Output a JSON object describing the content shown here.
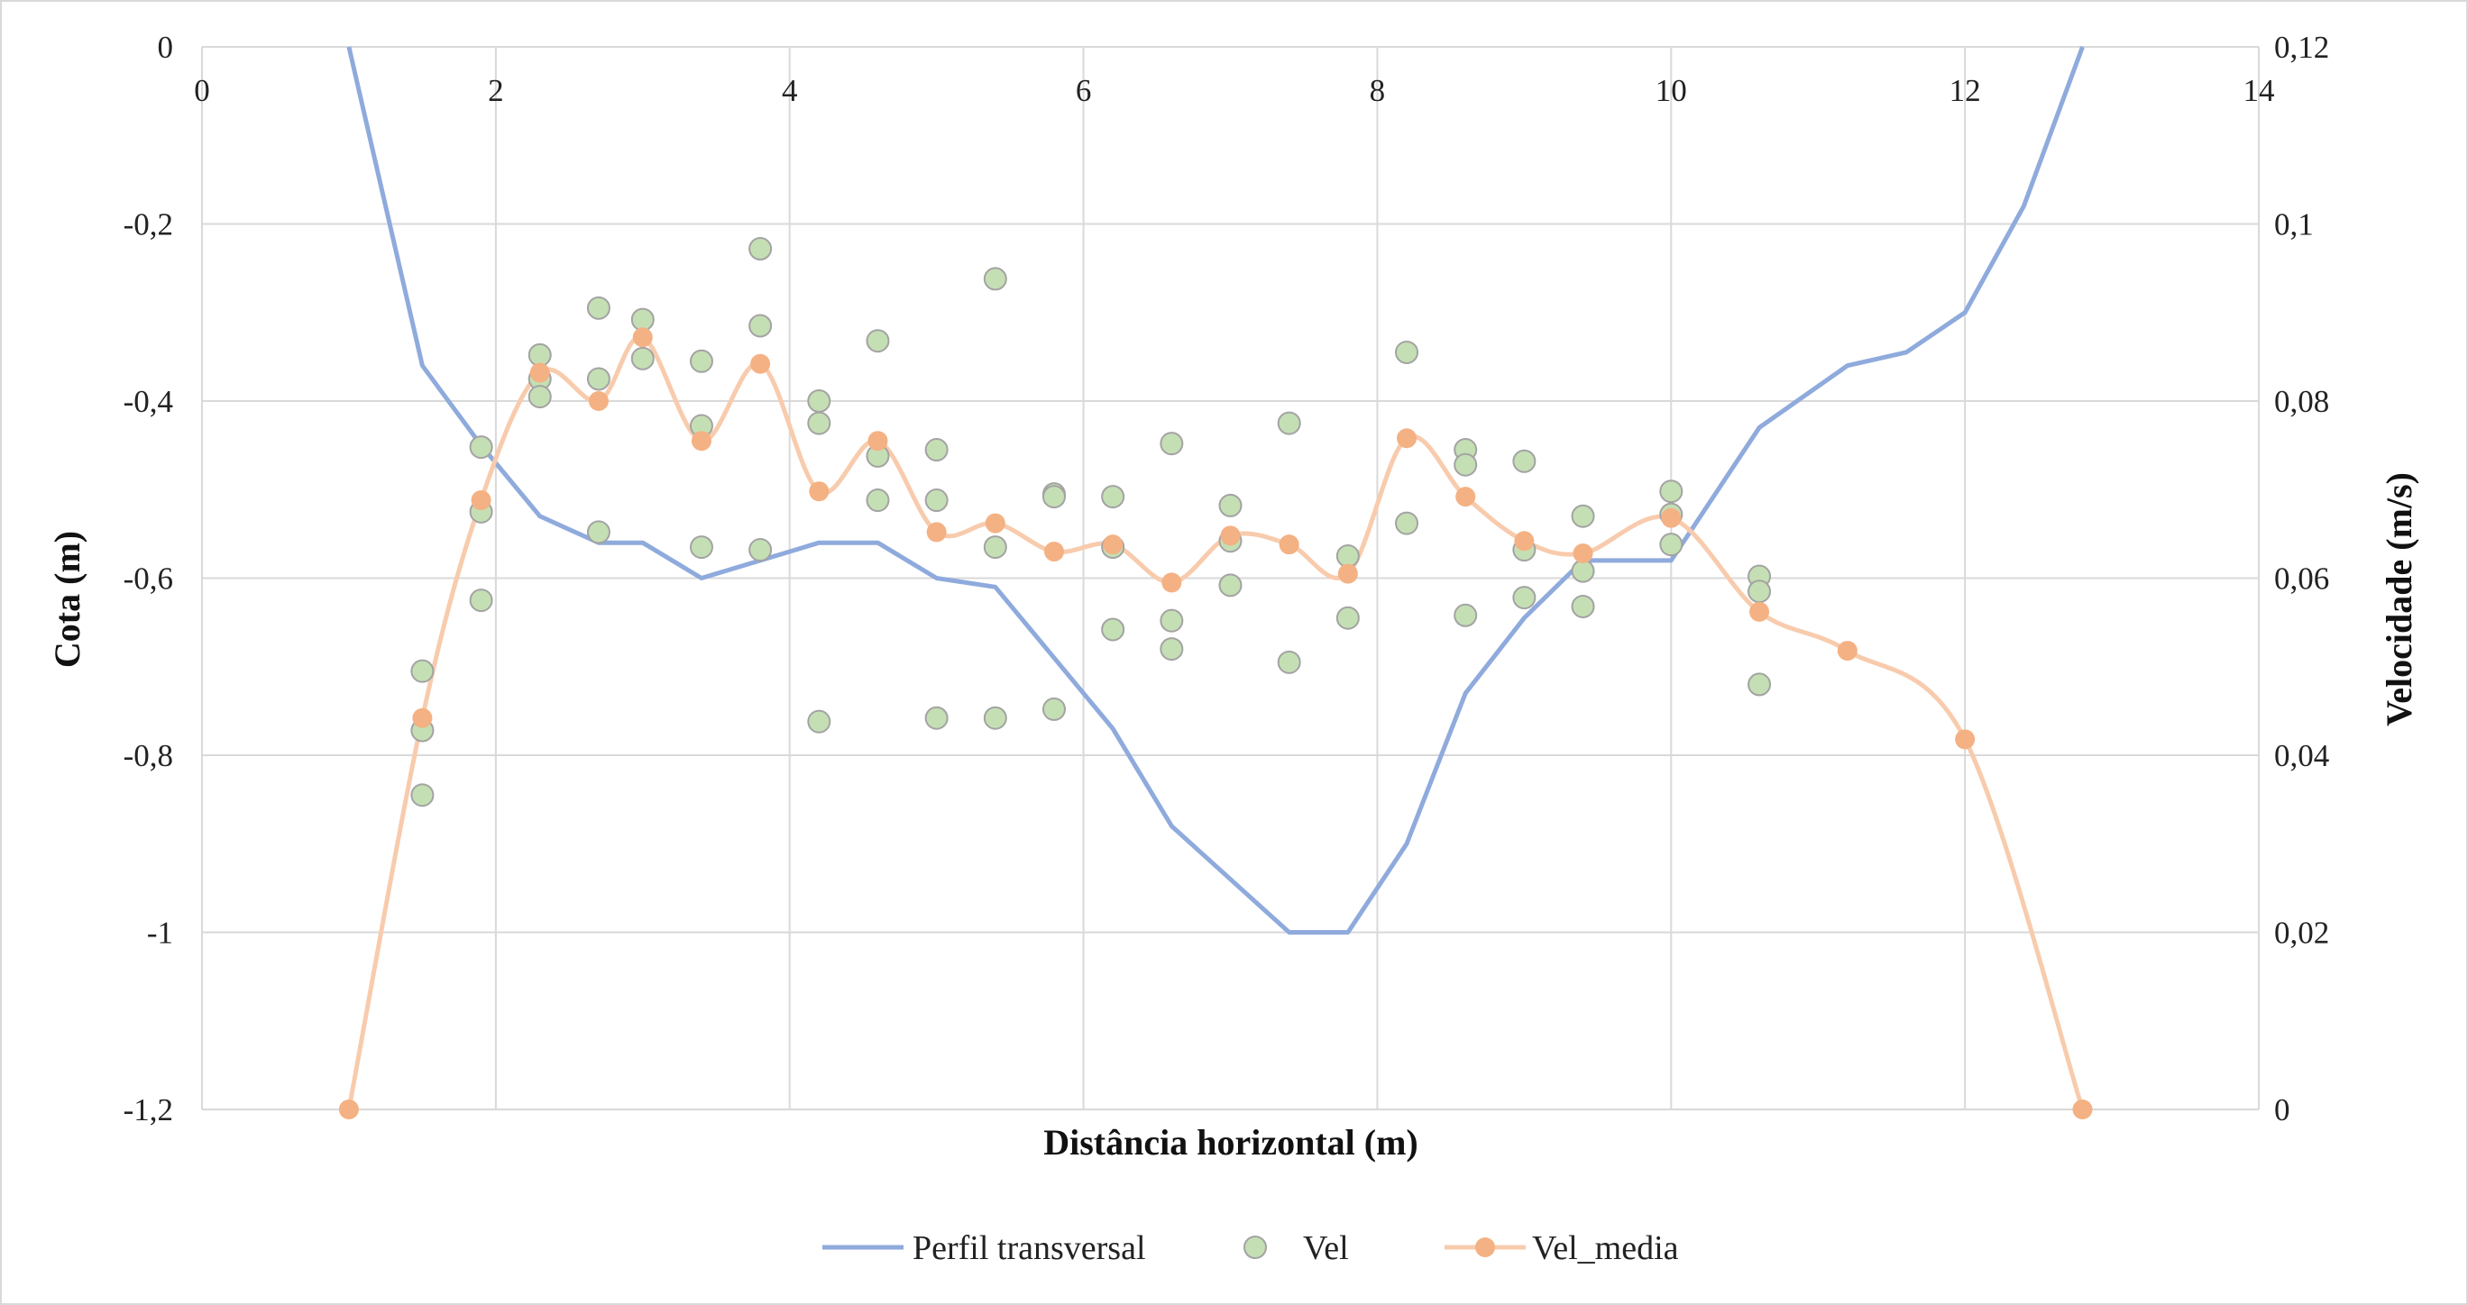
{
  "chart_data": {
    "type": "line",
    "title": "",
    "xlabel": "Distância horizontal (m)",
    "ylabel_left": "Cota (m)",
    "ylabel_right": "Velocidade (m/s)",
    "xlim": [
      0,
      14
    ],
    "ylim_left": [
      -1.2,
      0
    ],
    "ylim_right": [
      0,
      0.12
    ],
    "grid": true,
    "legend_position": "bottom",
    "x_ticks": [
      "0",
      "2",
      "4",
      "6",
      "8",
      "10",
      "12",
      "14"
    ],
    "y_left_ticks": [
      "0",
      "-0,2",
      "-0,4",
      "-0,6",
      "-0,8",
      "-1",
      "-1,2"
    ],
    "y_right_ticks": [
      "0,12",
      "0,1",
      "0,08",
      "0,06",
      "0,04",
      "0,02",
      "0"
    ],
    "series": [
      {
        "name": "Perfil transversal",
        "axis": "left",
        "style": "line",
        "color": "#8faadc",
        "points": [
          [
            1.0,
            0.0
          ],
          [
            1.5,
            -0.36
          ],
          [
            1.9,
            -0.45
          ],
          [
            2.3,
            -0.53
          ],
          [
            2.7,
            -0.56
          ],
          [
            3.0,
            -0.56
          ],
          [
            3.4,
            -0.6
          ],
          [
            3.8,
            -0.58
          ],
          [
            4.2,
            -0.56
          ],
          [
            4.6,
            -0.56
          ],
          [
            5.0,
            -0.6
          ],
          [
            5.4,
            -0.61
          ],
          [
            5.8,
            -0.69
          ],
          [
            6.2,
            -0.77
          ],
          [
            6.6,
            -0.88
          ],
          [
            7.0,
            -0.94
          ],
          [
            7.4,
            -1.0
          ],
          [
            7.8,
            -1.0
          ],
          [
            8.2,
            -0.9
          ],
          [
            8.6,
            -0.73
          ],
          [
            9.0,
            -0.645
          ],
          [
            9.4,
            -0.58
          ],
          [
            10.0,
            -0.58
          ],
          [
            10.6,
            -0.43
          ],
          [
            11.2,
            -0.36
          ],
          [
            11.6,
            -0.345
          ],
          [
            12.0,
            -0.3
          ],
          [
            12.4,
            -0.18
          ],
          [
            12.8,
            0.0
          ]
        ]
      },
      {
        "name": "Vel",
        "axis": "right",
        "style": "scatter",
        "color": "#c5dfb4",
        "points": [
          [
            1.5,
            0.0495
          ],
          [
            1.5,
            0.0428
          ],
          [
            1.5,
            0.0355
          ],
          [
            1.9,
            0.0748
          ],
          [
            1.9,
            0.0675
          ],
          [
            1.9,
            0.0575
          ],
          [
            2.3,
            0.0852
          ],
          [
            2.3,
            0.0825
          ],
          [
            2.3,
            0.0805
          ],
          [
            2.7,
            0.0905
          ],
          [
            2.7,
            0.0825
          ],
          [
            2.7,
            0.0652
          ],
          [
            3.0,
            0.0892
          ],
          [
            3.0,
            0.0848
          ],
          [
            3.4,
            0.0845
          ],
          [
            3.4,
            0.0772
          ],
          [
            3.4,
            0.0635
          ],
          [
            3.8,
            0.0972
          ],
          [
            3.8,
            0.0885
          ],
          [
            3.8,
            0.0632
          ],
          [
            4.2,
            0.08
          ],
          [
            4.2,
            0.0775
          ],
          [
            4.2,
            0.0438
          ],
          [
            4.6,
            0.0868
          ],
          [
            4.6,
            0.0738
          ],
          [
            4.6,
            0.0688
          ],
          [
            5.0,
            0.0745
          ],
          [
            5.0,
            0.0688
          ],
          [
            5.0,
            0.0442
          ],
          [
            5.4,
            0.0938
          ],
          [
            5.4,
            0.0635
          ],
          [
            5.4,
            0.0442
          ],
          [
            5.8,
            0.0695
          ],
          [
            5.8,
            0.0692
          ],
          [
            5.8,
            0.0452
          ],
          [
            6.2,
            0.0692
          ],
          [
            6.2,
            0.0635
          ],
          [
            6.2,
            0.0542
          ],
          [
            6.6,
            0.0752
          ],
          [
            6.6,
            0.0552
          ],
          [
            6.6,
            0.052
          ],
          [
            7.0,
            0.0682
          ],
          [
            7.0,
            0.0642
          ],
          [
            7.0,
            0.0592
          ],
          [
            7.4,
            0.0775
          ],
          [
            7.4,
            0.0505
          ],
          [
            7.8,
            0.0625
          ],
          [
            7.8,
            0.0555
          ],
          [
            8.2,
            0.0855
          ],
          [
            8.2,
            0.0662
          ],
          [
            8.6,
            0.0745
          ],
          [
            8.6,
            0.0728
          ],
          [
            8.6,
            0.0558
          ],
          [
            9.0,
            0.0732
          ],
          [
            9.0,
            0.0632
          ],
          [
            9.0,
            0.0578
          ],
          [
            9.4,
            0.067
          ],
          [
            9.4,
            0.0608
          ],
          [
            9.4,
            0.0568
          ],
          [
            10.0,
            0.0698
          ],
          [
            10.0,
            0.0672
          ],
          [
            10.0,
            0.0638
          ],
          [
            10.6,
            0.0602
          ],
          [
            10.6,
            0.0585
          ],
          [
            10.6,
            0.048
          ]
        ]
      },
      {
        "name": "Vel_media",
        "axis": "right",
        "style": "smooth-line-markers",
        "color": "#f8cbad",
        "marker_color": "#f4b183",
        "points": [
          [
            1.0,
            0.0
          ],
          [
            1.5,
            0.0442
          ],
          [
            1.9,
            0.0688
          ],
          [
            2.3,
            0.0832
          ],
          [
            2.7,
            0.08
          ],
          [
            3.0,
            0.0872
          ],
          [
            3.4,
            0.0755
          ],
          [
            3.8,
            0.0842
          ],
          [
            4.2,
            0.0698
          ],
          [
            4.6,
            0.0755
          ],
          [
            5.0,
            0.0652
          ],
          [
            5.4,
            0.0662
          ],
          [
            5.8,
            0.063
          ],
          [
            6.2,
            0.0638
          ],
          [
            6.6,
            0.0595
          ],
          [
            7.0,
            0.0648
          ],
          [
            7.4,
            0.0638
          ],
          [
            7.8,
            0.0605
          ],
          [
            8.2,
            0.0758
          ],
          [
            8.6,
            0.0692
          ],
          [
            9.0,
            0.0642
          ],
          [
            9.4,
            0.0628
          ],
          [
            10.0,
            0.0668
          ],
          [
            10.6,
            0.0562
          ],
          [
            11.2,
            0.0518
          ],
          [
            12.0,
            0.0418
          ],
          [
            12.8,
            0.0
          ]
        ]
      }
    ]
  }
}
